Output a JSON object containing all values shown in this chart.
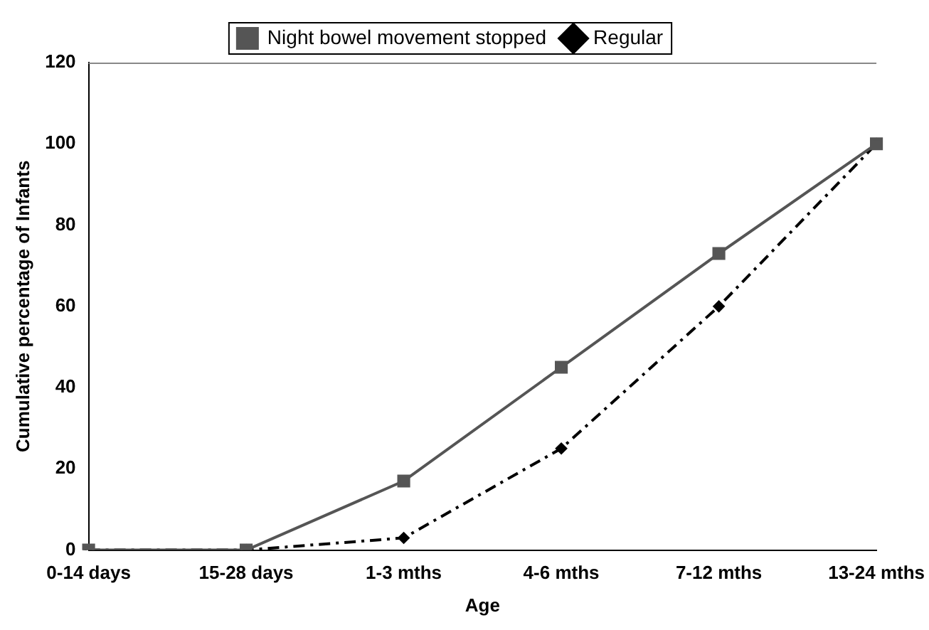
{
  "chart_data": {
    "type": "line",
    "xlabel": "Age",
    "ylabel": "Cumulative percentage of Infants",
    "categories": [
      "0-14 days",
      "15-28 days",
      "1-3 mths",
      "4-6 mths",
      "7-12 mths",
      "13-24 mths"
    ],
    "series": [
      {
        "name": "Regular",
        "color": "#000000",
        "marker": "diamond",
        "line_style": "dashed",
        "values": [
          0,
          0,
          3,
          25,
          60,
          100
        ]
      },
      {
        "name": "Night bowel movement stopped",
        "color": "#555555",
        "marker": "square",
        "line_style": "solid",
        "values": [
          0,
          0,
          17,
          45,
          73,
          100
        ]
      }
    ],
    "ylim": [
      0,
      120
    ],
    "yticks": [
      0,
      20,
      40,
      60,
      80,
      100,
      120
    ],
    "grid": false,
    "legend": "top"
  }
}
